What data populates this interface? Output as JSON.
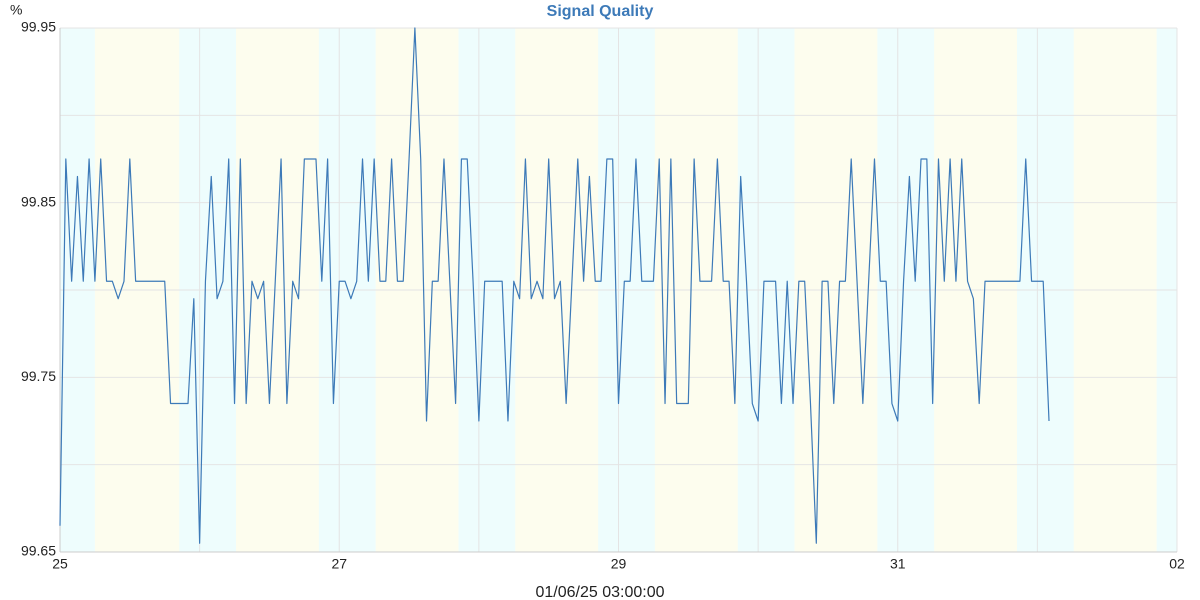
{
  "chart_data": {
    "type": "line",
    "title": "Signal Quality",
    "y_unit": "%",
    "x_caption": "01/06/25 03:00:00",
    "color": "#3d7ab8",
    "xlim": [
      0,
      192
    ],
    "xticks": [
      {
        "value": 0,
        "label": "25"
      },
      {
        "value": 48,
        "label": "27"
      },
      {
        "value": 96,
        "label": "29"
      },
      {
        "value": 144,
        "label": "31"
      },
      {
        "value": 192,
        "label": "02"
      }
    ],
    "x_minor_grid": [
      24,
      72,
      120,
      168
    ],
    "ylim": [
      99.65,
      99.95
    ],
    "yticks": [
      99.65,
      99.75,
      99.85,
      99.95
    ],
    "y_minor_grid": [
      99.7,
      99.8,
      99.9
    ],
    "grid": true,
    "day_color": "#fdfdee",
    "night_color": "#eefdfd",
    "night_bands": [
      [
        0,
        6
      ],
      [
        20.5,
        30.25
      ],
      [
        44.5,
        54.25
      ],
      [
        68.5,
        78.25
      ],
      [
        92.5,
        102.25
      ],
      [
        116.5,
        126.25
      ],
      [
        140.5,
        150.25
      ],
      [
        164.5,
        174.25
      ],
      [
        188.5,
        192
      ]
    ],
    "x": [
      0,
      1,
      2,
      3,
      4,
      5,
      6,
      7,
      8,
      9,
      10,
      11,
      12,
      13,
      14,
      15,
      16,
      17,
      18,
      19,
      20,
      21,
      22,
      23,
      24,
      25,
      26,
      27,
      28,
      29,
      30,
      31,
      32,
      33,
      34,
      35,
      36,
      37,
      38,
      39,
      40,
      41,
      42,
      43,
      44,
      45,
      46,
      47,
      48,
      49,
      50,
      51,
      52,
      53,
      54,
      55,
      56,
      57,
      58,
      59,
      60,
      61,
      62,
      63,
      64,
      65,
      66,
      67,
      68,
      69,
      70,
      71,
      72,
      73,
      74,
      75,
      76,
      77,
      78,
      79,
      80,
      81,
      82,
      83,
      84,
      85,
      86,
      87,
      88,
      89,
      90,
      91,
      92,
      93,
      94,
      95,
      96,
      97,
      98,
      99,
      100,
      101,
      102,
      103,
      104,
      105,
      106,
      107,
      108,
      109,
      110,
      111,
      112,
      113,
      114,
      115,
      116,
      117,
      118,
      119,
      120,
      121,
      122,
      123,
      124,
      125,
      126,
      127,
      128,
      129,
      130,
      131,
      132,
      133,
      134,
      135,
      136,
      137,
      138,
      139,
      140,
      141,
      142,
      143,
      144,
      145,
      146,
      147,
      148,
      149,
      150,
      151,
      152,
      153,
      154,
      155,
      156,
      157,
      158,
      159,
      160,
      161,
      162,
      163,
      164,
      165,
      166,
      167,
      168,
      169,
      170
    ],
    "values": [
      99.665,
      99.875,
      99.805,
      99.865,
      99.805,
      99.875,
      99.805,
      99.875,
      99.805,
      99.805,
      99.795,
      99.805,
      99.875,
      99.805,
      99.805,
      99.805,
      99.805,
      99.805,
      99.805,
      99.735,
      99.735,
      99.735,
      99.735,
      99.795,
      99.655,
      99.805,
      99.865,
      99.795,
      99.805,
      99.875,
      99.735,
      99.875,
      99.735,
      99.805,
      99.795,
      99.805,
      99.735,
      99.805,
      99.875,
      99.735,
      99.805,
      99.795,
      99.875,
      99.875,
      99.875,
      99.805,
      99.875,
      99.735,
      99.805,
      99.805,
      99.795,
      99.805,
      99.875,
      99.805,
      99.875,
      99.805,
      99.805,
      99.875,
      99.805,
      99.805,
      99.875,
      99.95,
      99.875,
      99.725,
      99.805,
      99.805,
      99.875,
      99.805,
      99.735,
      99.875,
      99.875,
      99.805,
      99.725,
      99.805,
      99.805,
      99.805,
      99.805,
      99.725,
      99.805,
      99.795,
      99.875,
      99.795,
      99.805,
      99.795,
      99.875,
      99.795,
      99.805,
      99.735,
      99.805,
      99.875,
      99.805,
      99.865,
      99.805,
      99.805,
      99.875,
      99.875,
      99.735,
      99.805,
      99.805,
      99.875,
      99.805,
      99.805,
      99.805,
      99.875,
      99.735,
      99.875,
      99.735,
      99.735,
      99.735,
      99.875,
      99.805,
      99.805,
      99.805,
      99.875,
      99.805,
      99.805,
      99.735,
      99.865,
      99.805,
      99.735,
      99.725,
      99.805,
      99.805,
      99.805,
      99.735,
      99.805,
      99.735,
      99.805,
      99.805,
      99.735,
      99.655,
      99.805,
      99.805,
      99.735,
      99.805,
      99.805,
      99.875,
      99.805,
      99.735,
      99.805,
      99.875,
      99.805,
      99.805,
      99.735,
      99.725,
      99.805,
      99.865,
      99.805,
      99.875,
      99.875,
      99.735,
      99.875,
      99.805,
      99.875,
      99.805,
      99.875,
      99.805,
      99.795,
      99.735,
      99.805,
      99.805,
      99.805,
      99.805,
      99.805,
      99.805,
      99.805,
      99.875,
      99.805,
      99.805,
      99.805,
      99.725
    ]
  }
}
